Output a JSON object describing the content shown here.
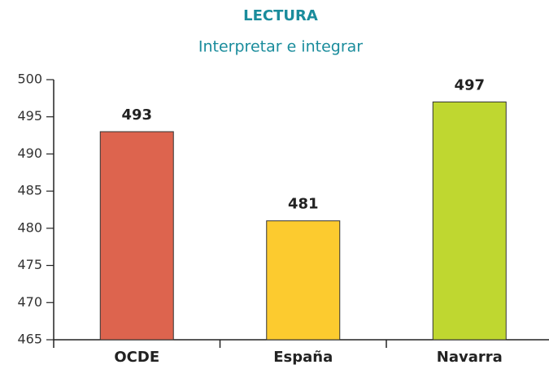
{
  "chart_data": {
    "type": "bar",
    "title": "LECTURA",
    "subtitle": "Interpretar e integrar",
    "categories": [
      "OCDE",
      "España",
      "Navarra"
    ],
    "values": [
      493,
      481,
      497
    ],
    "colors": [
      "#dd644e",
      "#fccb2f",
      "#bfd730"
    ],
    "ylim": [
      465,
      500
    ],
    "yticks": [
      465,
      470,
      475,
      480,
      485,
      490,
      495,
      500
    ],
    "grid": false
  }
}
